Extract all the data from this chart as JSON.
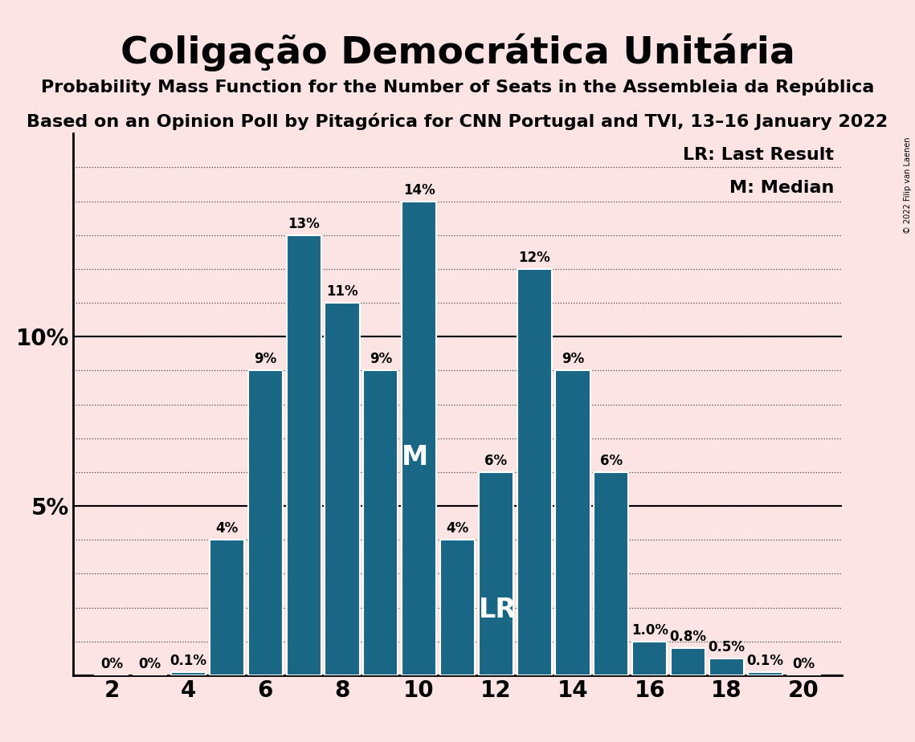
{
  "title": "Coligação Democrática Unitária",
  "subtitle1": "Probability Mass Function for the Number of Seats in the Assembleia da República",
  "subtitle2": "Based on an Opinion Poll by Pitagórica for CNN Portugal and TVI, 13–16 January 2022",
  "copyright": "© 2022 Filip van Laenen",
  "legend_lr": "LR: Last Result",
  "legend_m": "M: Median",
  "background_color": "#fce4e4",
  "bar_color": "#1a6685",
  "seats": [
    2,
    3,
    4,
    5,
    6,
    7,
    8,
    9,
    10,
    11,
    12,
    13,
    14,
    15,
    16,
    17,
    18,
    19,
    20
  ],
  "probabilities": [
    0.0,
    0.0,
    0.001,
    0.04,
    0.09,
    0.13,
    0.11,
    0.09,
    0.14,
    0.04,
    0.06,
    0.12,
    0.09,
    0.06,
    0.01,
    0.008,
    0.005,
    0.001,
    0.0
  ],
  "labels": [
    "0%",
    "0%",
    "0.1%",
    "4%",
    "9%",
    "13%",
    "11%",
    "9%",
    "14%",
    "4%",
    "6%",
    "12%",
    "9%",
    "6%",
    "1.0%",
    "0.8%",
    "0.5%",
    "0.1%",
    "0%"
  ],
  "median_seat": 10,
  "lr_seat": 12,
  "xlim": [
    1,
    21
  ],
  "ylim": [
    0,
    0.16
  ],
  "xticks": [
    2,
    4,
    6,
    8,
    10,
    12,
    14,
    16,
    18,
    20
  ],
  "yticks": [
    0.0,
    0.05,
    0.1
  ],
  "ytick_labels": [
    "",
    "5%",
    "10%"
  ],
  "title_fontsize": 34,
  "subtitle_fontsize": 16,
  "axis_fontsize": 20,
  "label_fontsize": 12,
  "legend_fontsize": 16
}
